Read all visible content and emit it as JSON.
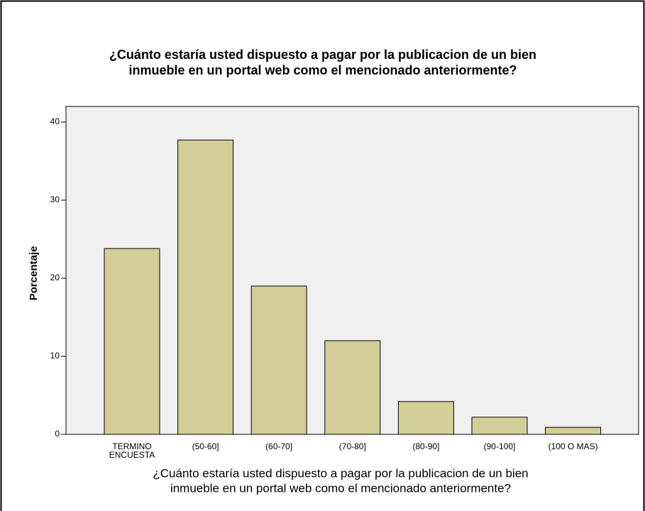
{
  "chart_data": {
    "type": "bar",
    "title": [
      "¿Cuánto estaría usted dispuesto a pagar por la publicacion de un bien",
      "inmueble en un portal web como el mencionado anteriormente?"
    ],
    "x_label": [
      "¿Cuánto estaría usted dispuesto a pagar por la publicacion de un bien",
      "inmueble en un portal web como el mencionado anteriormente?"
    ],
    "y_label": "Porcentaje",
    "categories": [
      "TERMINO ENCUESTA",
      "(50-60]",
      "(60-70]",
      "(70-80]",
      "(80-90]",
      "(90-100]",
      "(100 O MAS)"
    ],
    "values": [
      23.8,
      37.7,
      19.0,
      12.0,
      4.2,
      2.2,
      0.9
    ],
    "color": "#d3cd98",
    "ylim": [
      0,
      42
    ],
    "yticks": [
      0,
      10,
      20,
      30,
      40
    ],
    "grid": false
  }
}
